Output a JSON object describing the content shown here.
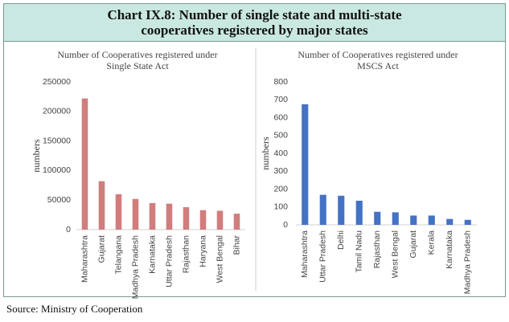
{
  "title": "Chart IX.8: Number of single state and multi-state cooperatives registered by major states",
  "source": "Source: Ministry of Cooperation",
  "chart_data": [
    {
      "type": "bar",
      "title": "Number of Cooperatives registered under Single State Act",
      "ylabel": "numbers",
      "categories": [
        "Maharashtra",
        "Gujarat",
        "Telangana",
        "Madhya Pradesh",
        "Karnataka",
        "Uttar Pradesh",
        "Rajasthan",
        "Haryana",
        "West Bengal",
        "Bihar"
      ],
      "values": [
        222000,
        82000,
        60000,
        52000,
        45000,
        44000,
        38000,
        33000,
        32000,
        27000
      ],
      "color": "#d17d7d",
      "ylim": [
        0,
        250000
      ],
      "yticks": [
        0,
        50000,
        100000,
        150000,
        200000,
        250000
      ],
      "grid": false
    },
    {
      "type": "bar",
      "title": "Number of Cooperatives registered under MSCS Act",
      "ylabel": "numbers",
      "categories": [
        "Maharashtra",
        "Uttar Pradesh",
        "Delhi",
        "Tamil Nadu",
        "Rajasthan",
        "West Bengal",
        "Gujarat",
        "Kerala",
        "Karnataka",
        "Madhya Pradesh"
      ],
      "values": [
        675,
        168,
        163,
        135,
        73,
        70,
        52,
        52,
        33,
        28
      ],
      "color": "#4472c4",
      "ylim": [
        0,
        800
      ],
      "yticks": [
        0,
        100,
        200,
        300,
        400,
        500,
        600,
        700,
        800
      ],
      "grid": false
    }
  ]
}
